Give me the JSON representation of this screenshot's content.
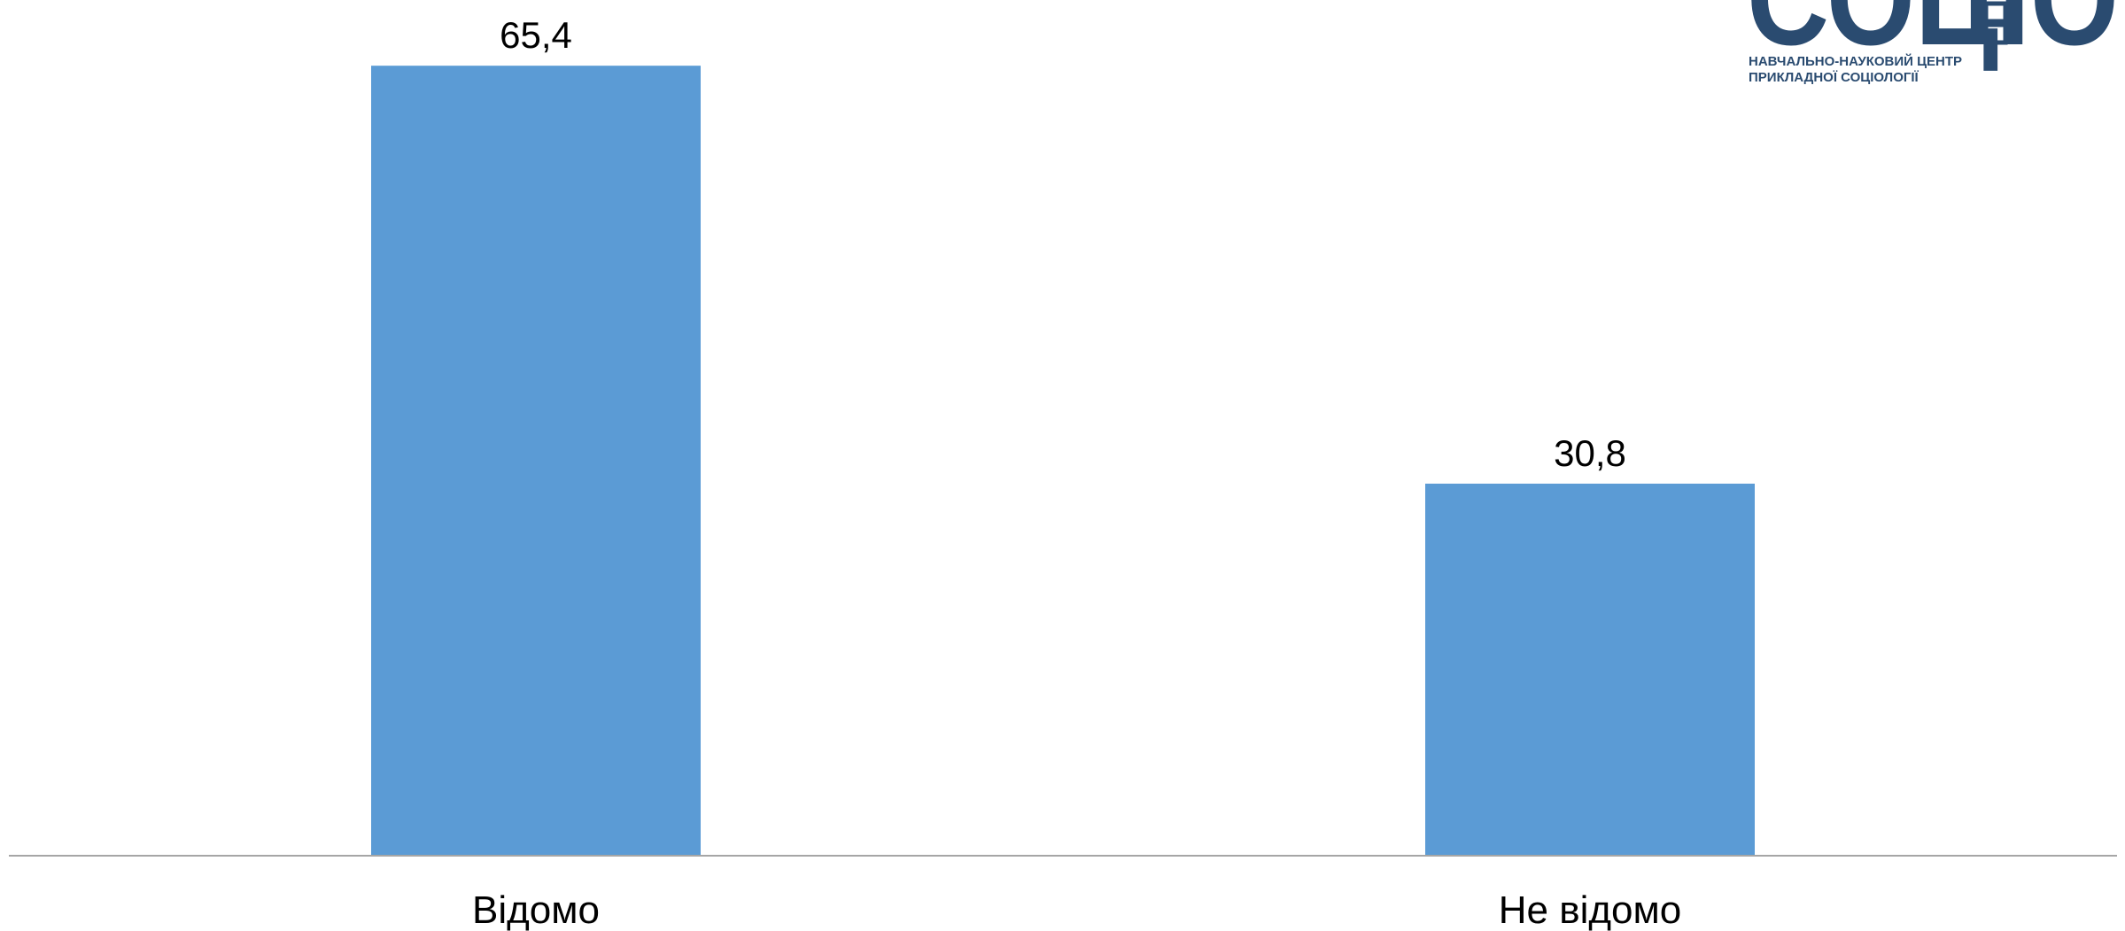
{
  "chart_data": {
    "type": "bar",
    "categories": [
      "Відомо",
      "Не відомо"
    ],
    "values": [
      65.4,
      30.8
    ],
    "value_labels": [
      "65,4",
      "30,8"
    ],
    "title": "",
    "xlabel": "",
    "ylabel": "",
    "ylim": [
      0,
      66
    ],
    "grid": false,
    "legend": "none",
    "bar_color": "#5B9BD5",
    "axis_color": "#A6A6A6"
  },
  "logo": {
    "text_main": "СОЦІО",
    "line1": "НАВЧАЛЬНО-НАУКОВИЙ ЦЕНТР",
    "line2": "ПРИКЛАДНОЇ СОЦІОЛОГІЇ",
    "color": "#2A4B70"
  }
}
